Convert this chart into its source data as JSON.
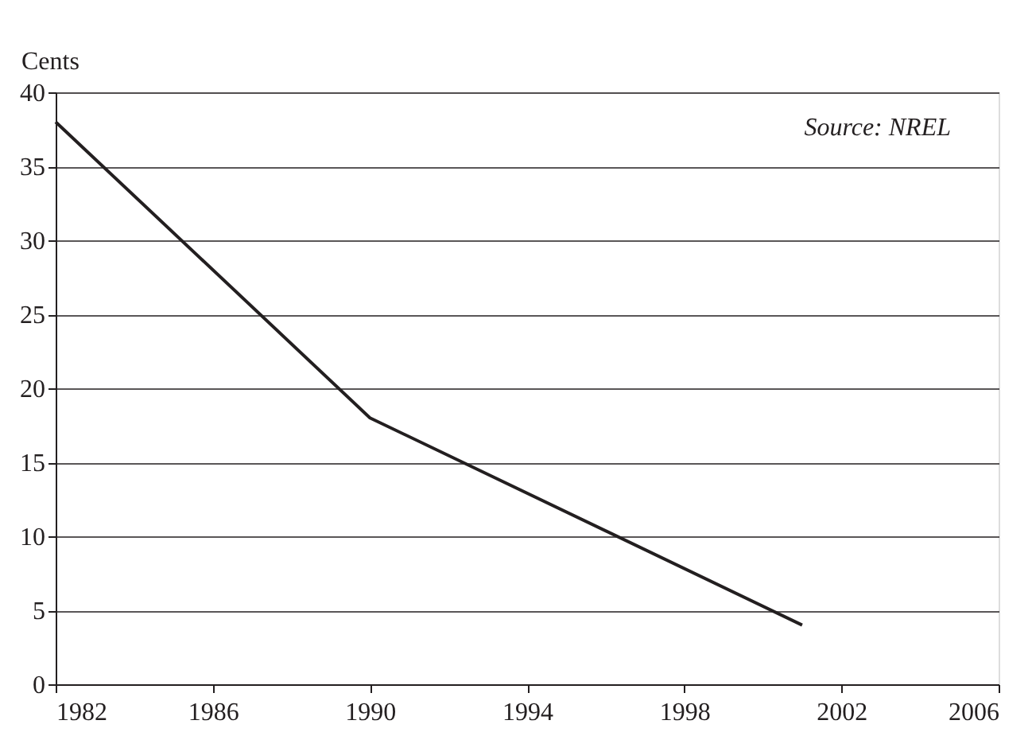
{
  "chart_data": {
    "type": "line",
    "ylabel": "Cents",
    "x": [
      1982,
      1990,
      2001
    ],
    "series": [
      {
        "color": "#231f20",
        "values": [
          38,
          18,
          4
        ]
      }
    ],
    "xlim": [
      1982,
      2006
    ],
    "xticks": [
      1982,
      1986,
      1990,
      1994,
      1998,
      2002,
      2006
    ],
    "ylim": [
      0,
      40
    ],
    "yticks": [
      0,
      5,
      10,
      15,
      20,
      25,
      30,
      35,
      40
    ],
    "grid": "y",
    "marker": "none",
    "line_style": "solid",
    "annotations": [
      "Source: NREL"
    ]
  }
}
